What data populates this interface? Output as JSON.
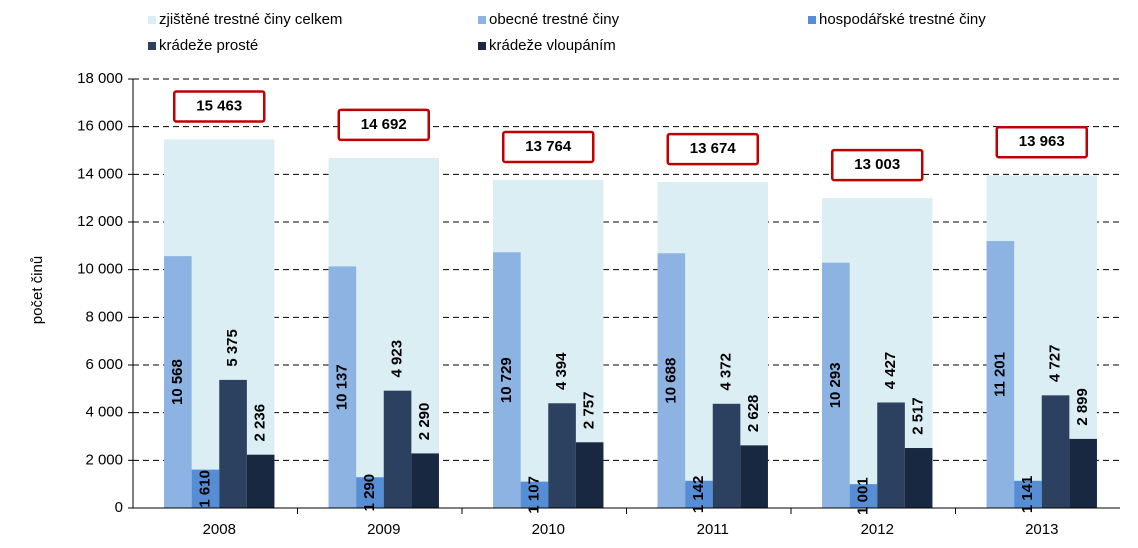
{
  "chart_data": {
    "type": "bar",
    "y_label": "počet činů",
    "categories": [
      "2008",
      "2009",
      "2010",
      "2011",
      "2012",
      "2013"
    ],
    "series": [
      {
        "name": "zjištěné trestné činy celkem",
        "color": "#dbeef4",
        "values": [
          15463,
          14692,
          13764,
          13674,
          13003,
          13963
        ],
        "value_labels": [
          "15 463",
          "14 692",
          "13 764",
          "13 674",
          "13 003",
          "13 963"
        ]
      },
      {
        "name": "obecné trestné činy",
        "color": "#8db3e2",
        "values": [
          10568,
          10137,
          10729,
          10688,
          10293,
          11201
        ],
        "value_labels": [
          "10 568",
          "10 137",
          "10 729",
          "10 688",
          "10 293",
          "11 201"
        ]
      },
      {
        "name": "hospodářské trestné činy",
        "color": "#558ed5",
        "values": [
          1610,
          1290,
          1107,
          1142,
          1001,
          1141
        ],
        "value_labels": [
          "1 610",
          "1 290",
          "1 107",
          "1 142",
          "1 001",
          "1 141"
        ]
      },
      {
        "name": "krádeže prosté",
        "color": "#2c4060",
        "values": [
          5375,
          4923,
          4394,
          4372,
          4427,
          4727
        ],
        "value_labels": [
          "5 375",
          "4 923",
          "4 394",
          "4 372",
          "4 427",
          "4 727"
        ]
      },
      {
        "name": "krádeže vloupáním",
        "color": "#172840",
        "values": [
          2236,
          2290,
          2757,
          2628,
          2517,
          2899
        ],
        "value_labels": [
          "2 236",
          "2 290",
          "2 757",
          "2 628",
          "2 517",
          "2 899"
        ]
      }
    ],
    "ylim": [
      0,
      18000
    ],
    "yticks": [
      0,
      {
        "value": 2000,
        "label": "2 000"
      },
      {
        "value": 4000,
        "label": "4 000"
      },
      {
        "value": 6000,
        "label": "6 000"
      },
      {
        "value": 8000,
        "label": "8 000"
      },
      {
        "value": 10000,
        "label": "10 000"
      },
      {
        "value": 12000,
        "label": "12 000"
      },
      {
        "value": 14000,
        "label": "14 000"
      },
      {
        "value": 16000,
        "label": "16 000"
      },
      {
        "value": 18000,
        "label": "18 000"
      }
    ],
    "grid": true
  }
}
